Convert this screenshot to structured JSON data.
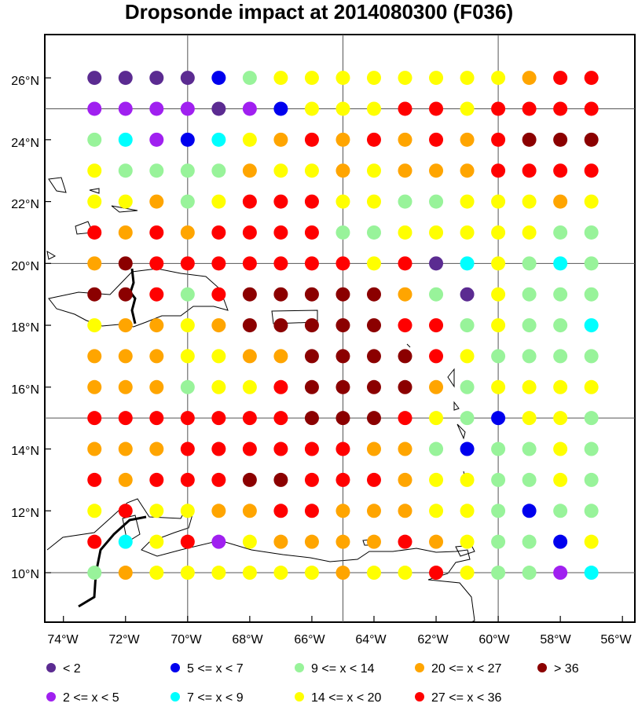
{
  "title": "Dropsonde impact at 2014080300 (F036)",
  "lat_labels": [
    "26°N",
    "24°N",
    "22°N",
    "20°N",
    "18°N",
    "16°N",
    "14°N",
    "12°N",
    "10°N"
  ],
  "lon_labels": [
    "74°W",
    "72°W",
    "70°W",
    "68°W",
    "66°W",
    "64°W",
    "62°W",
    "60°W",
    "58°W",
    "56°W"
  ],
  "legend": [
    {
      "label": "<  2",
      "color": "#5b2b91"
    },
    {
      "label": "5 <= x <  7",
      "color": "#0000ee"
    },
    {
      "label": "9 <= x < 14",
      "color": "#98f39a"
    },
    {
      "label": "20 <= x < 27",
      "color": "#ffa500"
    },
    {
      "label": "> 36",
      "color": "#8b0000"
    },
    {
      "label": "2 <= x <  5",
      "color": "#a020f0"
    },
    {
      "label": "7 <= x <  9",
      "color": "#00ffff"
    },
    {
      "label": "14 <= x < 20",
      "color": "#ffff00"
    },
    {
      "label": "27 <= x < 36",
      "color": "#ff0000"
    }
  ],
  "chart_data": {
    "type": "scatter",
    "title": "Dropsonde impact at 2014080300 (F036)",
    "xlim": [
      -74.6,
      -55.6
    ],
    "ylim": [
      8.4,
      27.4
    ],
    "lon_start": -73,
    "lon_step": 1,
    "lat_start": 26,
    "lat_step": -1,
    "categories": [
      "<  2",
      "2 <= x <  5",
      "5 <= x <  7",
      "7 <= x <  9",
      "9 <= x < 14",
      "14 <= x < 20",
      "20 <= x < 27",
      "27 <= x < 36",
      "> 36"
    ],
    "colors": {
      "D": "#5b2b91",
      "P": "#a020f0",
      "B": "#0000ee",
      "C": "#00ffff",
      "G": "#98f39a",
      "Y": "#ffff00",
      "O": "#ffa500",
      "R": "#ff0000",
      "M": "#8b0000"
    },
    "grid_rows": [
      "DDDDBGYYYYYYYYORR",
      "PPPPDPBYYYRRYRRRR",
      "GCPBCYORORORORMMM",
      "YGGGGOYYOYOOORRRR",
      "YYOGYRRRYYGGYYYOY",
      "RORORRRRGGYYYYYGG",
      "OMRRRRRRRYRDCYGCG",
      "MMRGRMMMMMOGDYGGG",
      "YOOYOMMMMMRRGYGGC",
      "OOOYYOOMMMMRYGGGG",
      "OOOGYYRMMMMOGYYYY",
      "RRRRRRRMMMRYGBYYG",
      "OOORRRRRROOGBGGYG",
      "RORRRMMRRROYYGGYG",
      "YRYYOORROOOYYGBGG",
      "RCYRPYOOOOROYGGBY",
      "GOYYYYYYOYYRYGGPC"
    ]
  }
}
